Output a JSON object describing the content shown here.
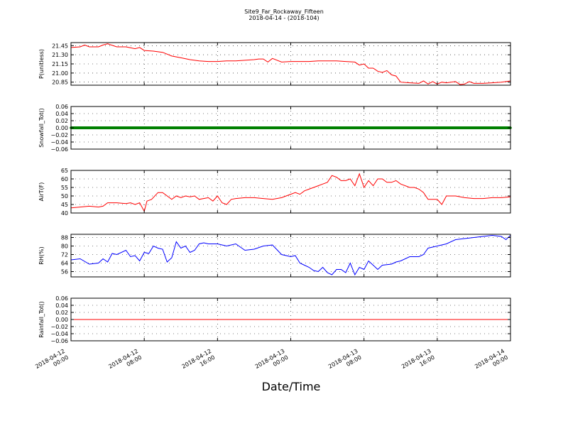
{
  "figure": {
    "title_line1": "Site9_Far_Rockaway_Fifteen",
    "title_line2": "2018-04-14 - (2018-104)",
    "xlabel": "Date/Time"
  },
  "chart_data": {
    "type": "line",
    "x_range": [
      "2018-04-12 00:00",
      "2018-04-14 00:00"
    ],
    "x_ticks": [
      {
        "line1": "2018-04-12",
        "line2": "00:00"
      },
      {
        "line1": "2018-04-12",
        "line2": "08:00"
      },
      {
        "line1": "2018-04-12",
        "line2": "16:00"
      },
      {
        "line1": "2018-04-13",
        "line2": "00:00"
      },
      {
        "line1": "2018-04-13",
        "line2": "08:00"
      },
      {
        "line1": "2018-04-13",
        "line2": "16:00"
      },
      {
        "line1": "2018-04-14",
        "line2": "00:00"
      }
    ],
    "x_tick_hours": [
      0,
      8,
      16,
      24,
      32,
      40,
      48
    ],
    "grid": true,
    "panels": [
      {
        "ylabel": "P(unitless)",
        "color": "#ff0000",
        "ylim": [
          20.8,
          21.5
        ],
        "yticks": [
          "21.45",
          "21.30",
          "21.15",
          "21.00",
          "20.85"
        ],
        "ytick_values": [
          21.45,
          21.3,
          21.15,
          21.0,
          20.85
        ],
        "hours": [
          0,
          1,
          1.5,
          2,
          3,
          3.5,
          4,
          5,
          5.5,
          6,
          7,
          7.5,
          8,
          9,
          9.5,
          10,
          11,
          12,
          13,
          14,
          15,
          16,
          17,
          18,
          19,
          20,
          20.5,
          21,
          21.5,
          22,
          23,
          24,
          25,
          26,
          27,
          28,
          29,
          30,
          31,
          31.5,
          32,
          32.5,
          33,
          33.5,
          34,
          34.5,
          35,
          35.5,
          36,
          37,
          38,
          38.5,
          39,
          39.5,
          40,
          40.5,
          41,
          42,
          42.5,
          43,
          43.5,
          44,
          45,
          46,
          47,
          48
        ],
        "values": [
          21.42,
          21.43,
          21.46,
          21.43,
          21.43,
          21.46,
          21.48,
          21.43,
          21.43,
          21.43,
          21.4,
          21.42,
          21.37,
          21.36,
          21.35,
          21.34,
          21.28,
          21.25,
          21.22,
          21.2,
          21.19,
          21.19,
          21.2,
          21.2,
          21.21,
          21.22,
          21.23,
          21.23,
          21.18,
          21.24,
          21.18,
          21.19,
          21.19,
          21.19,
          21.2,
          21.2,
          21.2,
          21.19,
          21.18,
          21.13,
          21.15,
          21.08,
          21.08,
          21.03,
          21.01,
          21.04,
          20.97,
          20.95,
          20.85,
          20.84,
          20.83,
          20.87,
          20.82,
          20.86,
          20.82,
          20.85,
          20.84,
          20.86,
          20.81,
          20.82,
          20.86,
          20.83,
          20.83,
          20.84,
          20.85,
          20.87
        ]
      },
      {
        "ylabel": "Snowfall_Tot()",
        "color": "#008000",
        "marker": "dense-points",
        "ylim": [
          -0.06,
          0.06
        ],
        "yticks": [
          "0.06",
          "0.04",
          "0.02",
          "0.00",
          "−0.02",
          "−0.04",
          "−0.06"
        ],
        "ytick_values": [
          0.06,
          0.04,
          0.02,
          0.0,
          -0.02,
          -0.04,
          -0.06
        ],
        "hours": [
          0,
          48
        ],
        "values": [
          0,
          0
        ]
      },
      {
        "ylabel": "AirT(F)",
        "color": "#ff0000",
        "ylim": [
          40,
          65
        ],
        "yticks": [
          "65",
          "60",
          "55",
          "50",
          "45",
          "40"
        ],
        "ytick_values": [
          65,
          60,
          55,
          50,
          45,
          40
        ],
        "hours": [
          0,
          1,
          2,
          3,
          3.5,
          4,
          5,
          6,
          6.5,
          7,
          7.5,
          8,
          8.3,
          8.8,
          9.5,
          10,
          11,
          11.5,
          12,
          12.5,
          13,
          13.5,
          14,
          15,
          15.5,
          16,
          16.5,
          17,
          17.5,
          18,
          19,
          20,
          21,
          22,
          23,
          24,
          24.5,
          25,
          25.5,
          26,
          27,
          27.5,
          28,
          28.5,
          29,
          29.5,
          30,
          30.5,
          31,
          31.5,
          32,
          32.5,
          33,
          33.5,
          34,
          34.5,
          35,
          35.5,
          36,
          37,
          37.5,
          38,
          38.5,
          39,
          40,
          40.5,
          41,
          42,
          43,
          44,
          45,
          46,
          47,
          48
        ],
        "values": [
          43,
          43.5,
          44,
          43.5,
          44,
          46,
          46,
          45.5,
          46,
          45,
          46,
          41,
          47,
          48,
          52,
          52,
          48,
          50,
          49,
          50,
          49.5,
          50,
          48,
          49,
          47,
          50,
          46,
          45,
          48,
          48.5,
          49,
          49,
          48.5,
          48,
          49,
          51,
          52,
          51,
          53,
          54,
          56,
          57,
          58,
          62,
          61,
          59,
          59,
          60,
          56,
          63,
          55,
          59,
          56,
          60,
          60,
          58,
          58,
          59,
          57,
          55,
          55,
          54,
          52,
          48,
          48,
          45,
          50,
          50,
          49,
          48.5,
          48.5,
          49,
          49,
          49.5
        ]
      },
      {
        "ylabel": "RH(%)",
        "color": "#0000ff",
        "ylim": [
          51,
          91
        ],
        "yticks": [
          "88",
          "80",
          "72",
          "64",
          "56"
        ],
        "ytick_values": [
          88,
          80,
          72,
          64,
          56
        ],
        "hours": [
          0,
          1,
          2,
          3,
          3.5,
          4,
          4.5,
          5,
          6,
          6.5,
          7,
          7.5,
          8,
          8.5,
          9,
          9.5,
          10,
          10.5,
          11,
          11.5,
          12,
          12.5,
          13,
          13.5,
          14,
          14.5,
          15,
          16,
          17,
          18,
          19,
          20,
          21,
          22,
          23,
          24,
          24.5,
          25,
          25.5,
          26,
          26.5,
          27,
          27.5,
          28,
          28.5,
          29,
          29.5,
          30,
          30.5,
          31,
          31.5,
          32,
          32.5,
          33,
          33.5,
          34,
          35,
          35.5,
          36,
          37,
          38,
          38.5,
          39,
          40,
          41,
          42,
          43,
          44,
          45,
          46,
          47,
          47.5,
          48
        ],
        "values": [
          67,
          68,
          63,
          64,
          68,
          65,
          73,
          72,
          76,
          70,
          71,
          66,
          74,
          73,
          80,
          78,
          77,
          65,
          69,
          84,
          78,
          80,
          74,
          76,
          82,
          83,
          82,
          82,
          80,
          82,
          76,
          77,
          80,
          81,
          72,
          70,
          71,
          64,
          62,
          60,
          57,
          56,
          60,
          55,
          53,
          58,
          58,
          55,
          64,
          53,
          60,
          58,
          66,
          62,
          58,
          62,
          63,
          65,
          66,
          70,
          70,
          72,
          78,
          80,
          82,
          86,
          87,
          88,
          89,
          90,
          89,
          86,
          90
        ]
      },
      {
        "ylabel": "Rainfall_Tot()",
        "color": "#ff0000",
        "ylim": [
          -0.06,
          0.06
        ],
        "yticks": [
          "0.06",
          "0.04",
          "0.02",
          "0.00",
          "−0.02",
          "−0.04",
          "−0.06"
        ],
        "ytick_values": [
          0.06,
          0.04,
          0.02,
          0.0,
          -0.02,
          -0.04,
          -0.06
        ],
        "hours": [
          0,
          48
        ],
        "values": [
          0,
          0
        ]
      }
    ]
  }
}
